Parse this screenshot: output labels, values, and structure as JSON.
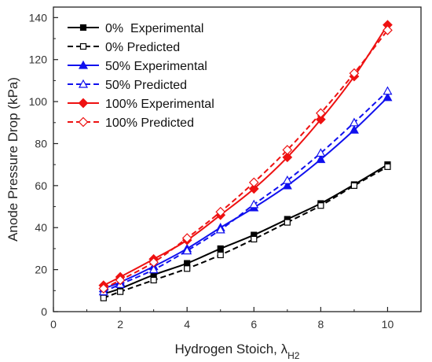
{
  "chart_data": {
    "type": "line",
    "xlabel": "Hydrogen Stoich, λ",
    "xlabel_sub": "H2",
    "ylabel": "Anode Pressure Drop (kPa)",
    "xlim": [
      0,
      11
    ],
    "ylim": [
      0,
      145
    ],
    "xticks": [
      0,
      2,
      4,
      6,
      8,
      10
    ],
    "yticks": [
      0,
      20,
      40,
      60,
      80,
      100,
      120,
      140
    ],
    "grid": false,
    "legend_position": "top-left",
    "x": [
      1.5,
      2,
      3,
      4,
      5,
      6,
      7,
      8,
      9,
      10
    ],
    "series": [
      {
        "name": "0%  Experimental",
        "color": "#000000",
        "dash": false,
        "marker": "square",
        "filled": true,
        "values": [
          8.5,
          11,
          17.5,
          23,
          30,
          36.5,
          44,
          51.5,
          60.5,
          70
        ]
      },
      {
        "name": "0% Predicted",
        "color": "#000000",
        "dash": true,
        "marker": "square",
        "filled": false,
        "values": [
          6.5,
          9.5,
          15,
          20.5,
          27,
          34.5,
          42.5,
          50.5,
          60,
          69
        ]
      },
      {
        "name": "50% Experimental",
        "color": "#1010ee",
        "dash": false,
        "marker": "triangle",
        "filled": true,
        "values": [
          11,
          14,
          21.5,
          30,
          40,
          49.5,
          60,
          72.5,
          86.5,
          102
        ]
      },
      {
        "name": "50% Predicted",
        "color": "#1010ee",
        "dash": true,
        "marker": "triangle",
        "filled": false,
        "values": [
          9.5,
          13,
          20,
          29,
          39,
          51,
          62.5,
          75.5,
          90,
          105
        ]
      },
      {
        "name": "100% Experimental",
        "color": "#ee1111",
        "dash": false,
        "marker": "diamond",
        "filled": true,
        "values": [
          12.5,
          16.5,
          25,
          34,
          46,
          58.5,
          73.5,
          91.5,
          112,
          136.5
        ]
      },
      {
        "name": "100% Predicted",
        "color": "#ee1111",
        "dash": true,
        "marker": "diamond",
        "filled": false,
        "values": [
          11,
          15,
          23.5,
          35,
          47.5,
          61.5,
          77,
          94.5,
          113.5,
          134
        ]
      }
    ]
  }
}
